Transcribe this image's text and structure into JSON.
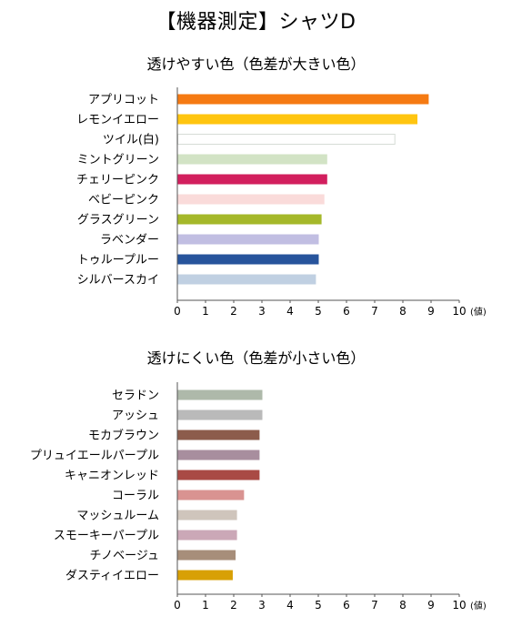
{
  "page_title": "【機器測定】シャツD",
  "chart_data": [
    {
      "type": "bar",
      "orientation": "horizontal",
      "title": "透けやすい色（色差が大きい色）",
      "unit_label": "(値)",
      "xlim": [
        0,
        10
      ],
      "ticks": [
        0,
        1,
        2,
        3,
        4,
        5,
        6,
        7,
        8,
        9,
        10
      ],
      "grid": false,
      "categories": [
        "アプリコット",
        "レモンイエロー",
        "ツイル(白)",
        "ミントグリーン",
        "チェリーピンク",
        "ベビーピンク",
        "グラスグリーン",
        "ラベンダー",
        "トゥループルー",
        "シルバースカイ"
      ],
      "values": [
        8.9,
        8.5,
        7.7,
        5.3,
        5.3,
        5.2,
        5.1,
        5.0,
        5.0,
        4.9
      ],
      "colors": [
        "#F57A12",
        "#FFC510",
        "#FFFFFF",
        "#D2E3C5",
        "#D21F5E",
        "#FADBDA",
        "#A5B82A",
        "#C1BEE2",
        "#27549C",
        "#C0D0E2"
      ]
    },
    {
      "type": "bar",
      "orientation": "horizontal",
      "title": "透けにくい色（色差が小さい色）",
      "unit_label": "(値)",
      "xlim": [
        0,
        10
      ],
      "ticks": [
        0,
        1,
        2,
        3,
        4,
        5,
        6,
        7,
        8,
        9,
        10
      ],
      "grid": false,
      "categories": [
        "セラドン",
        "アッシュ",
        "モカブラウン",
        "プリュイエールパープル",
        "キャニオンレッド",
        "コーラル",
        "マッシュルーム",
        "スモーキーパープル",
        "チノベージュ",
        "ダスティイエロー"
      ],
      "values": [
        3.0,
        3.0,
        2.9,
        2.9,
        2.9,
        2.35,
        2.1,
        2.1,
        2.05,
        1.95
      ],
      "colors": [
        "#AEB9AA",
        "#BABABA",
        "#8C5C4C",
        "#A88E9E",
        "#A94A45",
        "#D99391",
        "#CFC5BC",
        "#CBA8B7",
        "#A78E7A",
        "#D8A005"
      ]
    }
  ]
}
